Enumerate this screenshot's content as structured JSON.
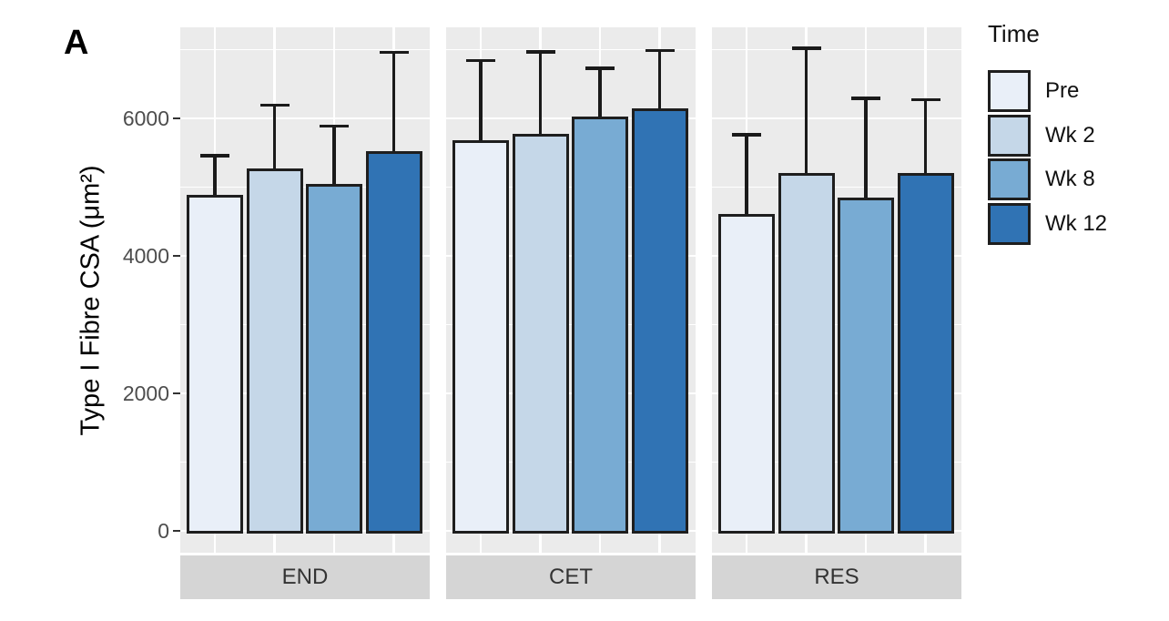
{
  "panel_label": "A",
  "legend": {
    "title": "Time",
    "entries": [
      {
        "label": "Pre",
        "color": "#E9EFF8"
      },
      {
        "label": "Wk 2",
        "color": "#C5D7E8"
      },
      {
        "label": "Wk 8",
        "color": "#78ABD3"
      },
      {
        "label": "Wk 12",
        "color": "#3073B4"
      }
    ]
  },
  "colors": {
    "panel_background": "#EBEBEB",
    "strip_background": "#D5D5D5",
    "gridline": "#FFFFFF",
    "bar_outline": "#1E1E1E",
    "tick_text": "#4D4D4D"
  },
  "chart_data": {
    "type": "bar",
    "title": "",
    "facets": [
      "END",
      "CET",
      "RES"
    ],
    "categories": [
      "Pre",
      "Wk 2",
      "Wk 8",
      "Wk 12"
    ],
    "series": [
      {
        "name": "Pre",
        "color": "#E9EFF8",
        "values": [
          4890,
          5680,
          4610
        ],
        "error_top": [
          5460,
          6840,
          5760
        ]
      },
      {
        "name": "Wk 2",
        "color": "#C5D7E8",
        "values": [
          5270,
          5780,
          5210
        ],
        "error_top": [
          6190,
          6970,
          7020
        ]
      },
      {
        "name": "Wk 8",
        "color": "#78ABD3",
        "values": [
          5050,
          6030,
          4850
        ],
        "error_top": [
          5890,
          6730,
          6290
        ]
      },
      {
        "name": "Wk 12",
        "color": "#3073B4",
        "values": [
          5520,
          6150,
          5200
        ],
        "error_top": [
          6960,
          6990,
          6270
        ]
      }
    ],
    "xlabel": "",
    "ylabel": "Type I Fibre CSA (μm²)",
    "ylim": [
      0,
      7325
    ],
    "y_major_ticks": [
      0,
      2000,
      4000,
      6000
    ],
    "y_minor_gridlines": [
      1000,
      3000,
      5000,
      7000
    ],
    "error_bars": "upper whisker (SD), capped",
    "legend_position": "right",
    "grid": "major and minor horizontal, major vertical at bar centers"
  }
}
